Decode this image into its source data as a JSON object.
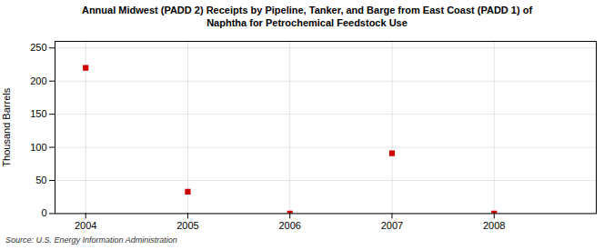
{
  "chart_data": {
    "type": "scatter",
    "title": "Annual Midwest (PADD 2) Receipts by Pipeline, Tanker, and Barge from East Coast (PADD 1) of\nNaphtha for Petrochemical Feedstock Use",
    "ylabel": "Thousand Barrels",
    "annotations": [
      "Source: U.S. Energy Information Administration"
    ],
    "x": [
      2004,
      2005,
      2006,
      2007,
      2008
    ],
    "values": [
      220,
      33,
      0,
      91,
      0
    ],
    "color": "#cc0000",
    "marker": "square",
    "xlim": [
      2003.7,
      2009.0
    ],
    "ylim": [
      0,
      260
    ],
    "xticks": [
      2004,
      2005,
      2006,
      2007,
      2008
    ],
    "yticks": [
      0,
      50,
      100,
      150,
      200,
      250
    ],
    "grid": true
  }
}
